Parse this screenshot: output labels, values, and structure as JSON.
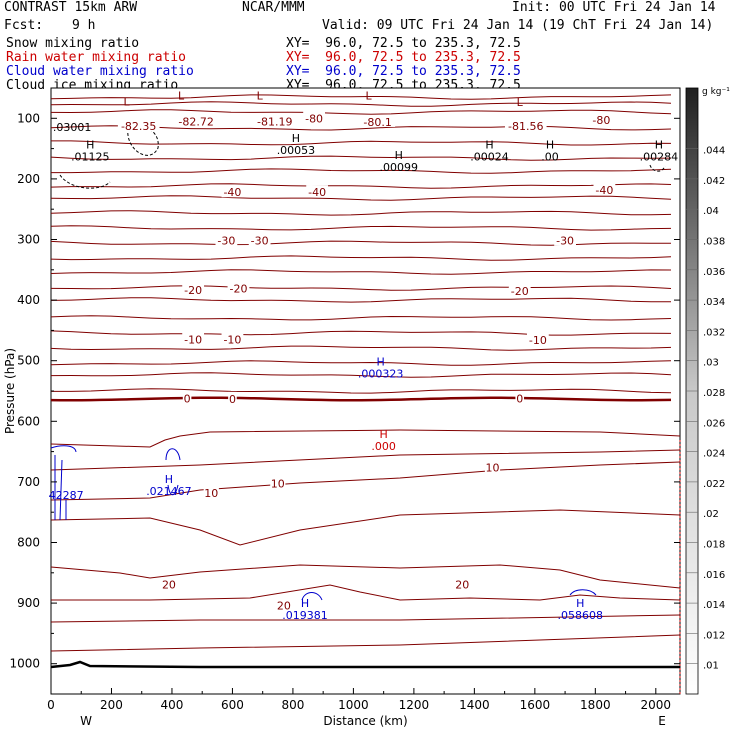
{
  "header": {
    "title_left": "CONTRAST 15km ARW",
    "title_center": "NCAR/MMM",
    "init": "Init: 00 UTC Fri 24 Jan 14",
    "fcst_label": "Fcst:",
    "fcst_value": "9 h",
    "valid": "Valid: 09 UTC Fri 24 Jan 14 (19 ChT Fri 24 Jan 14)",
    "fields": [
      {
        "name": "Snow mixing ratio",
        "xy": "XY=  96.0, 72.5 to 235.3, 72.5",
        "color": "#000000"
      },
      {
        "name": "Rain water mixing ratio",
        "xy": "XY=  96.0, 72.5 to 235.3, 72.5",
        "color": "#cc0000"
      },
      {
        "name": "Cloud water mixing ratio",
        "xy": "XY=  96.0, 72.5 to 235.3, 72.5",
        "color": "#0000cc"
      },
      {
        "name": "Cloud ice mixing ratio",
        "xy": "XY=  96.0, 72.5 to 235.3, 72.5",
        "color": "#000000"
      }
    ]
  },
  "chart_data": {
    "type": "line",
    "xlabel": "Distance (km)",
    "ylabel": "Pressure (hPa)",
    "xlim": [
      0,
      2080
    ],
    "ylim": [
      1050,
      50
    ],
    "x_ticks": [
      0,
      200,
      400,
      600,
      800,
      1000,
      1200,
      1400,
      1600,
      1800,
      2000
    ],
    "y_ticks": [
      100,
      200,
      300,
      400,
      500,
      600,
      700,
      800,
      900,
      1000
    ],
    "x_end_labels": {
      "left": "W",
      "right": "E"
    },
    "colorbar": {
      "unit": "g kg⁻¹",
      "ticks": [
        ".01",
        ".012",
        ".014",
        ".016",
        ".018",
        ".02",
        ".022",
        ".024",
        ".026",
        ".028",
        ".03",
        ".032",
        ".034",
        ".036",
        ".038",
        ".04",
        ".042",
        ".044"
      ]
    },
    "temperature_contour_labels": [
      {
        "text": "-82.35",
        "x": 290,
        "p": 113,
        "color": "#800000"
      },
      {
        "text": "-82.72",
        "x": 480,
        "p": 105,
        "color": "#800000"
      },
      {
        "text": "-81.19",
        "x": 740,
        "p": 105,
        "color": "#800000"
      },
      {
        "text": "-80",
        "x": 870,
        "p": 100,
        "color": "#800000"
      },
      {
        "text": "-80.1",
        "x": 1080,
        "p": 106,
        "color": "#800000"
      },
      {
        "text": "-81.56",
        "x": 1570,
        "p": 113,
        "color": "#800000"
      },
      {
        "text": "-80",
        "x": 1820,
        "p": 103,
        "color": "#800000"
      },
      {
        "text": "-40",
        "x": 600,
        "p": 222,
        "color": "#800000"
      },
      {
        "text": "-40",
        "x": 880,
        "p": 222,
        "color": "#800000"
      },
      {
        "text": "-40",
        "x": 1830,
        "p": 218,
        "color": "#800000"
      },
      {
        "text": "-30",
        "x": 580,
        "p": 302,
        "color": "#800000"
      },
      {
        "text": "-30",
        "x": 690,
        "p": 302,
        "color": "#800000"
      },
      {
        "text": "-30",
        "x": 1700,
        "p": 302,
        "color": "#800000"
      },
      {
        "text": "-20",
        "x": 470,
        "p": 383,
        "color": "#800000"
      },
      {
        "text": "-20",
        "x": 620,
        "p": 381,
        "color": "#800000"
      },
      {
        "text": "-20",
        "x": 1550,
        "p": 385,
        "color": "#800000"
      },
      {
        "text": "-10",
        "x": 470,
        "p": 465,
        "color": "#800000"
      },
      {
        "text": "-10",
        "x": 600,
        "p": 465,
        "color": "#800000"
      },
      {
        "text": "-10",
        "x": 1610,
        "p": 466,
        "color": "#800000"
      },
      {
        "text": "0",
        "x": 450,
        "p": 562,
        "color": "#800000"
      },
      {
        "text": "0",
        "x": 600,
        "p": 563,
        "color": "#800000"
      },
      {
        "text": "0",
        "x": 1550,
        "p": 562,
        "color": "#800000"
      },
      {
        "text": "10",
        "x": 530,
        "p": 718,
        "color": "#800000"
      },
      {
        "text": "10",
        "x": 750,
        "p": 703,
        "color": "#800000"
      },
      {
        "text": "10",
        "x": 1460,
        "p": 676,
        "color": "#800000"
      },
      {
        "text": "20",
        "x": 390,
        "p": 869,
        "color": "#800000"
      },
      {
        "text": "20",
        "x": 770,
        "p": 904,
        "color": "#800000"
      },
      {
        "text": "20",
        "x": 1360,
        "p": 869,
        "color": "#800000"
      }
    ],
    "extrema_labels": [
      {
        "mark": "L",
        "value": "",
        "x": 430,
        "p": 82,
        "color": "#800000"
      },
      {
        "mark": "L",
        "value": "",
        "x": 690,
        "p": 82,
        "color": "#800000"
      },
      {
        "mark": "L",
        "value": "",
        "x": 1050,
        "p": 82,
        "color": "#800000"
      },
      {
        "mark": "L",
        "value": "",
        "x": 250,
        "p": 92,
        "color": "#800000"
      },
      {
        "mark": "L",
        "value": "",
        "x": 1550,
        "p": 93,
        "color": "#800000"
      },
      {
        "mark": "",
        "value": ".03001",
        "x": 70,
        "p": 114,
        "color": "#000000"
      },
      {
        "mark": "H",
        "value": ".01125",
        "x": 130,
        "p": 163,
        "color": "#000000"
      },
      {
        "mark": "H",
        "value": ".00053",
        "x": 810,
        "p": 152,
        "color": "#000000"
      },
      {
        "mark": "H",
        "value": ".00099",
        "x": 1150,
        "p": 180,
        "color": "#000000"
      },
      {
        "mark": "H",
        "value": ".00024",
        "x": 1450,
        "p": 163,
        "color": "#000000"
      },
      {
        "mark": "H",
        "value": ".00",
        "x": 1650,
        "p": 163,
        "color": "#000000"
      },
      {
        "mark": "H",
        "value": ".00284",
        "x": 2010,
        "p": 163,
        "color": "#000000"
      },
      {
        "mark": "H",
        "value": ".000323",
        "x": 1090,
        "p": 521,
        "color": "#0000cc"
      },
      {
        "mark": "H",
        "value": ".000",
        "x": 1100,
        "p": 641,
        "color": "#cc0000"
      },
      {
        "mark": "",
        "value": "42287",
        "x": 50,
        "p": 722,
        "color": "#0000cc"
      },
      {
        "mark": "H",
        "value": ".021467",
        "x": 390,
        "p": 715,
        "color": "#0000cc"
      },
      {
        "mark": "H",
        "value": ".019381",
        "x": 840,
        "p": 920,
        "color": "#0000cc"
      },
      {
        "mark": "H",
        "value": ".058608",
        "x": 1750,
        "p": 920,
        "color": "#0000cc"
      }
    ]
  }
}
